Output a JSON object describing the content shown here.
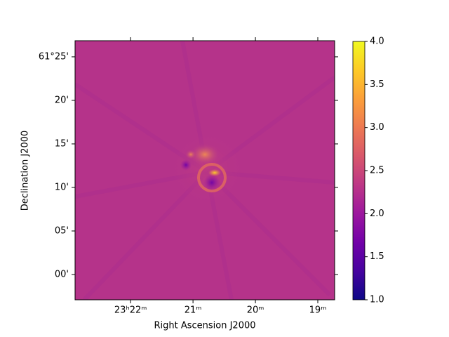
{
  "chart_data": {
    "type": "image",
    "xlabel": "Right Ascension J2000",
    "ylabel": "Declination J2000",
    "xlim": [
      23.3815,
      23.31217
    ],
    "xticks": [
      {
        "value": 23.36667,
        "label": "23ʰ22ᵐ"
      },
      {
        "value": 23.35,
        "label": "21ᵐ"
      },
      {
        "value": 23.33333,
        "label": "20ᵐ"
      },
      {
        "value": 23.31667,
        "label": "19ᵐ"
      }
    ],
    "ylim": [
      60.9516,
      61.4475
    ],
    "yticks": [
      {
        "value": 61.41667,
        "label": "61°25'"
      },
      {
        "value": 61.33333,
        "label": "20'"
      },
      {
        "value": 61.25,
        "label": "15'"
      },
      {
        "value": 61.16667,
        "label": "10'"
      },
      {
        "value": 61.08333,
        "label": "05'"
      },
      {
        "value": 61.0,
        "label": "00'"
      }
    ],
    "colorbar": {
      "colormap": "plasma",
      "lim": [
        1.0,
        4.0
      ],
      "ticks": [
        {
          "value": 1.0,
          "label": "1.0"
        },
        1.5,
        {
          "value": 2.0,
          "label": "2.0"
        },
        2.5,
        {
          "value": 3.0,
          "label": "3.0"
        },
        3.5,
        {
          "value": 4.0,
          "label": "4.0"
        }
      ]
    }
  }
}
